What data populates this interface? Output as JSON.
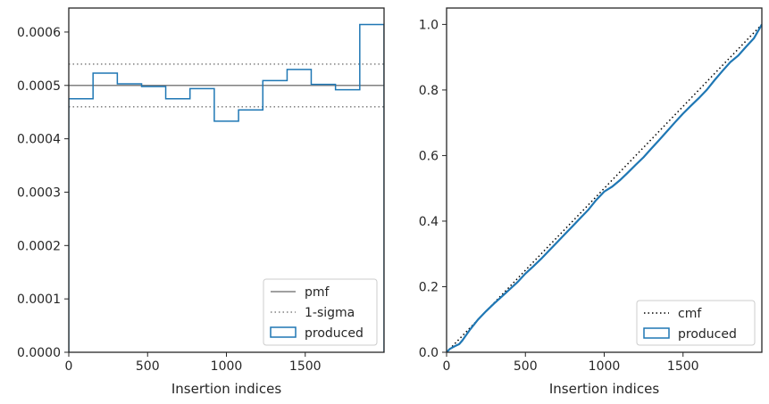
{
  "chart_data": [
    {
      "type": "histogram-step",
      "xlabel": "Insertion indices",
      "ylabel": "",
      "xlim": [
        0,
        2000
      ],
      "ylim": [
        0,
        0.000645
      ],
      "xticks": [
        0,
        500,
        1000,
        1500
      ],
      "xtick_labels": [
        "0",
        "500",
        "1000",
        "1500"
      ],
      "yticks": [
        0,
        0.0001,
        0.0002,
        0.0003,
        0.0004,
        0.0005,
        0.0006
      ],
      "ytick_labels": [
        "0.0000",
        "0.0001",
        "0.0002",
        "0.0003",
        "0.0004",
        "0.0005",
        "0.0006"
      ],
      "pmf": 0.0005,
      "sigma_band": [
        0.00046,
        0.00054
      ],
      "bin_edges": [
        0,
        154,
        308,
        462,
        615,
        769,
        923,
        1077,
        1231,
        1385,
        1538,
        1692,
        1846,
        2000
      ],
      "histogram_values": [
        0.000475,
        0.000523,
        0.000503,
        0.000498,
        0.000475,
        0.000494,
        0.000433,
        0.000454,
        0.000509,
        0.00053,
        0.000502,
        0.000492,
        0.000614
      ],
      "legend": {
        "placement": "lower right",
        "entries": [
          {
            "label": "pmf",
            "style": "solid",
            "color": "#808080"
          },
          {
            "label": "1-sigma",
            "style": "dotted",
            "color": "#808080"
          },
          {
            "label": "produced",
            "style": "patch",
            "color": "#1f77b4"
          }
        ]
      }
    },
    {
      "type": "line",
      "xlabel": "Insertion indices",
      "ylabel": "",
      "xlim": [
        0,
        2000
      ],
      "ylim": [
        0,
        1.05
      ],
      "xticks": [
        0,
        500,
        1000,
        1500
      ],
      "xtick_labels": [
        "0",
        "500",
        "1000",
        "1500"
      ],
      "yticks": [
        0,
        0.2,
        0.4,
        0.6,
        0.8,
        1.0
      ],
      "ytick_labels": [
        "0.0",
        "0.2",
        "0.4",
        "0.6",
        "0.8",
        "1.0"
      ],
      "series": [
        {
          "name": "cmf",
          "style": "dotted",
          "color": "#000000",
          "x": [
            0,
            2000
          ],
          "y": [
            0,
            1.0
          ]
        },
        {
          "name": "produced",
          "style": "solid",
          "color": "#1f77b4",
          "x": [
            0,
            20,
            50,
            80,
            100,
            150,
            200,
            250,
            300,
            350,
            400,
            450,
            500,
            550,
            600,
            650,
            700,
            750,
            800,
            850,
            900,
            950,
            1000,
            1050,
            1100,
            1150,
            1200,
            1250,
            1300,
            1350,
            1400,
            1450,
            1500,
            1550,
            1600,
            1650,
            1700,
            1750,
            1800,
            1850,
            1900,
            1950,
            2000
          ],
          "y": [
            0,
            0.01,
            0.018,
            0.025,
            0.036,
            0.07,
            0.1,
            0.125,
            0.148,
            0.17,
            0.192,
            0.214,
            0.24,
            0.262,
            0.285,
            0.31,
            0.335,
            0.36,
            0.385,
            0.41,
            0.435,
            0.465,
            0.49,
            0.505,
            0.525,
            0.548,
            0.572,
            0.595,
            0.622,
            0.648,
            0.675,
            0.702,
            0.728,
            0.752,
            0.775,
            0.8,
            0.83,
            0.858,
            0.885,
            0.905,
            0.932,
            0.958,
            1.0
          ]
        }
      ],
      "legend": {
        "placement": "lower right",
        "entries": [
          {
            "label": "cmf",
            "style": "dotted",
            "color": "#000000"
          },
          {
            "label": "produced",
            "style": "patch",
            "color": "#1f77b4"
          }
        ]
      }
    }
  ]
}
